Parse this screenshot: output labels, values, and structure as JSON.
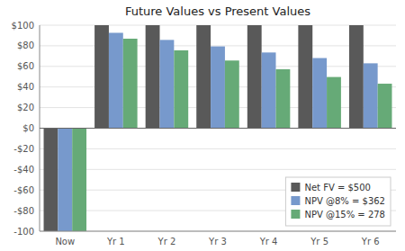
{
  "chart_data": {
    "type": "bar",
    "title": "Future Values vs Present Values",
    "categories": [
      "Now",
      "Yr 1",
      "Yr 2",
      "Yr 3",
      "Yr 4",
      "Yr 5",
      "Yr 6"
    ],
    "series": [
      {
        "name": "Net FV = $500",
        "color": "#595959",
        "values": [
          -100,
          100,
          100,
          100,
          100,
          100,
          100
        ]
      },
      {
        "name": "NPV @8% = $362",
        "color": "#7799cc",
        "values": [
          -100,
          92.6,
          85.7,
          79.4,
          73.5,
          68.1,
          63.0
        ]
      },
      {
        "name": "NPV @15% = 278",
        "color": "#66aa77",
        "values": [
          -100,
          86.9,
          75.6,
          65.7,
          57.2,
          49.7,
          43.2
        ]
      }
    ],
    "ylim": [
      -100,
      100
    ],
    "yticks": [
      -100,
      {
        "value": -80,
        "label": "-$80"
      },
      {
        "value": -60,
        "label": "-$60"
      },
      {
        "value": -40,
        "label": "-$40"
      },
      {
        "value": -20,
        "label": "-$20"
      },
      {
        "value": 0,
        "label": "$0"
      },
      {
        "value": 20,
        "label": "$20"
      },
      {
        "value": 40,
        "label": "$40"
      },
      {
        "value": 60,
        "label": "$60"
      },
      {
        "value": 80,
        "label": "$80"
      },
      {
        "value": 100,
        "label": "$100"
      }
    ],
    "grid": true,
    "legend": "lower right"
  }
}
